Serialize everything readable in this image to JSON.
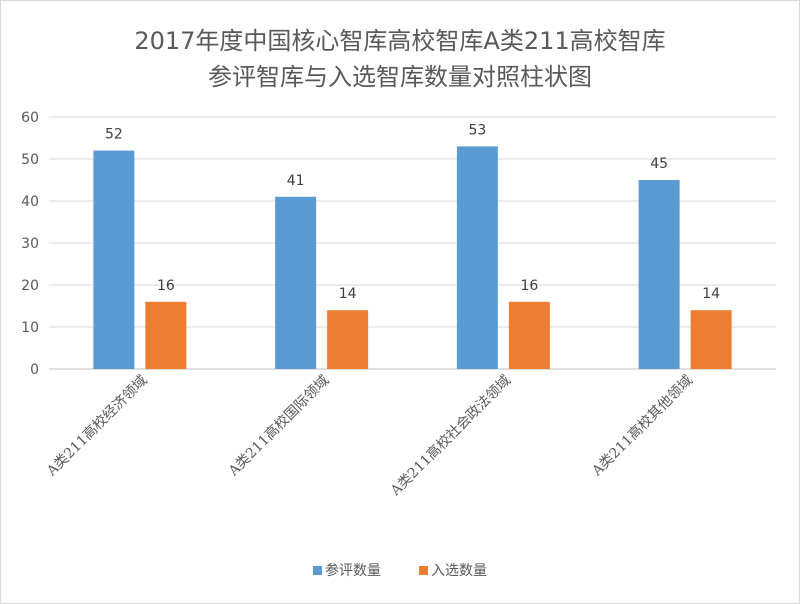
{
  "chart_data": {
    "type": "bar",
    "title_lines": [
      "2017年度中国核心智库高校智库A类211高校智库",
      "参评智库与入选智库数量对照柱状图"
    ],
    "categories": [
      "A类211高校经济领域",
      "A类211高校国际领域",
      "A类211高校社会政法领域",
      "A类211高校其他领域"
    ],
    "series": [
      {
        "name": "参评数量",
        "values": [
          52,
          41,
          53,
          45
        ],
        "color": "#5b9bd5"
      },
      {
        "name": "入选数量",
        "values": [
          16,
          14,
          16,
          14
        ],
        "color": "#ed7d31"
      }
    ],
    "yticks": [
      0,
      10,
      20,
      30,
      40,
      50,
      60
    ],
    "ylim": [
      0,
      60
    ],
    "grid": true,
    "legend": "bottom",
    "xlabel": "",
    "ylabel": ""
  }
}
